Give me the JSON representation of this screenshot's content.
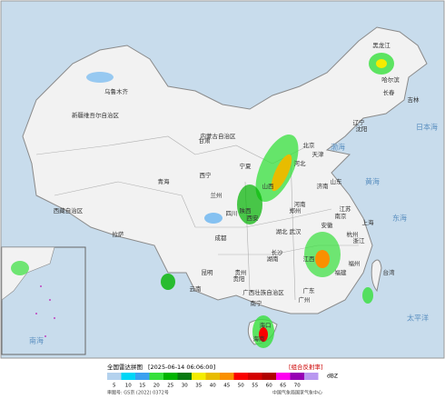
{
  "title": "全国雷达拼图",
  "time": "[2025-06-14 06:06:00]",
  "product": "[组合反射率]",
  "unit": "dBZ",
  "legend": {
    "ticks": [
      "5",
      "10",
      "15",
      "20",
      "25",
      "30",
      "35",
      "40",
      "45",
      "50",
      "55",
      "60",
      "65",
      "70"
    ],
    "colors": [
      "#b4d2ee",
      "#00d6f6",
      "#3ca0f0",
      "#36e03c",
      "#00b400",
      "#087a10",
      "#f4ec00",
      "#e8bc00",
      "#fa9000",
      "#fa0000",
      "#d40000",
      "#b00000",
      "#ff00f0",
      "#9600b4",
      "#b898f0"
    ]
  },
  "footer_left": "审图号: GS京 (2022) 0372号",
  "footer_right": "中国气象局国家气象中心",
  "labels": [
    "乌鲁木齐",
    "新疆维吾尔自治区",
    "西藏自治区",
    "青海",
    "西宁",
    "拉萨",
    "甘肃",
    "兰州",
    "宁夏",
    "内蒙古自治区",
    "四川",
    "成都",
    "云南",
    "昆明",
    "贵州",
    "贵阳",
    "广西壮族自治区",
    "南宁",
    "广东",
    "广州",
    "海南",
    "海口",
    "湖南",
    "长沙",
    "湖北",
    "武汉",
    "河南",
    "郑州",
    "山东",
    "济南",
    "江苏",
    "南京",
    "浙江",
    "杭州",
    "福建",
    "福州",
    "台湾",
    "江西",
    "安徽",
    "上海",
    "北京",
    "天津",
    "河北",
    "山西",
    "陕西",
    "西安",
    "黑龙江",
    "哈尔滨",
    "吉林",
    "长春",
    "辽宁",
    "沈阳",
    "黄海",
    "东海",
    "太平洋",
    "渤海",
    "日本海",
    "南海"
  ]
}
